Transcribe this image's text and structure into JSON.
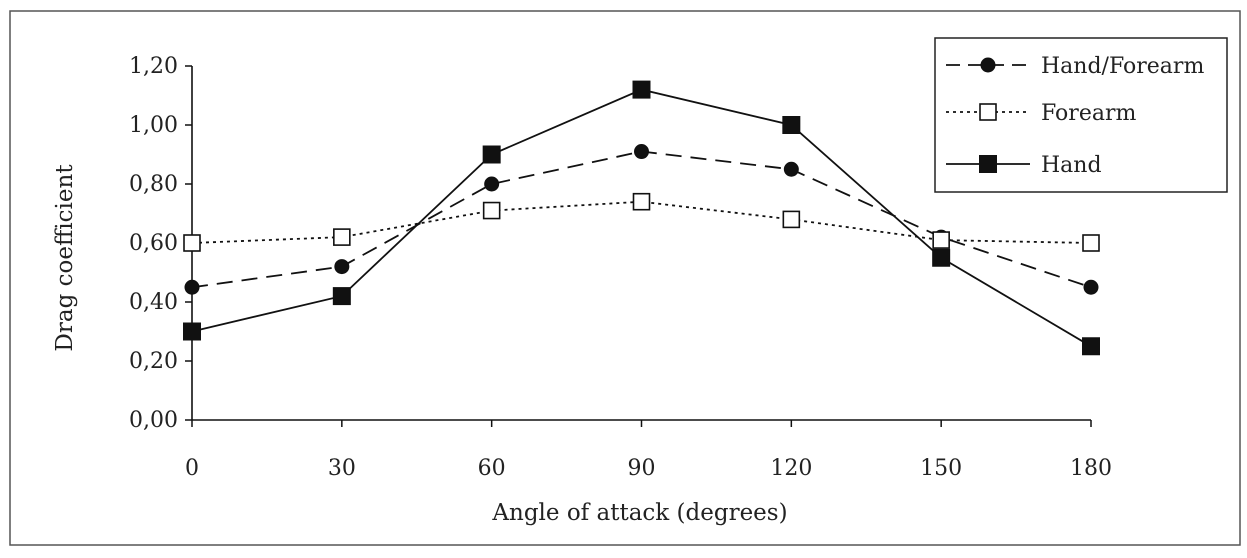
{
  "chart_data": {
    "type": "line",
    "title": "",
    "xlabel": "Angle of attack (degrees)",
    "ylabel": "Drag coefficient",
    "x": [
      0,
      30,
      60,
      90,
      120,
      150,
      180
    ],
    "x_tick_labels": [
      "0",
      "30",
      "60",
      "90",
      "120",
      "150",
      "180"
    ],
    "y_tick_labels": [
      "0,00",
      "0,20",
      "0,40",
      "0,60",
      "0,80",
      "1,00",
      "1,20"
    ],
    "ylim": [
      0,
      1.2
    ],
    "grid": false,
    "legend_position": "top-right",
    "series": [
      {
        "name": "Hand/Forearm",
        "line_style": "dashed",
        "marker": "filled-circle",
        "values": [
          0.45,
          0.52,
          0.8,
          0.91,
          0.85,
          0.62,
          0.45
        ]
      },
      {
        "name": "Forearm",
        "line_style": "dotted",
        "marker": "open-square",
        "values": [
          0.6,
          0.62,
          0.71,
          0.74,
          0.68,
          0.61,
          0.6
        ]
      },
      {
        "name": "Hand",
        "line_style": "solid",
        "marker": "filled-square",
        "values": [
          0.3,
          0.42,
          0.9,
          1.12,
          1.0,
          0.55,
          0.25
        ]
      }
    ],
    "colors": {
      "line": "#111111",
      "frame": "#555555",
      "background": "#ffffff"
    }
  }
}
